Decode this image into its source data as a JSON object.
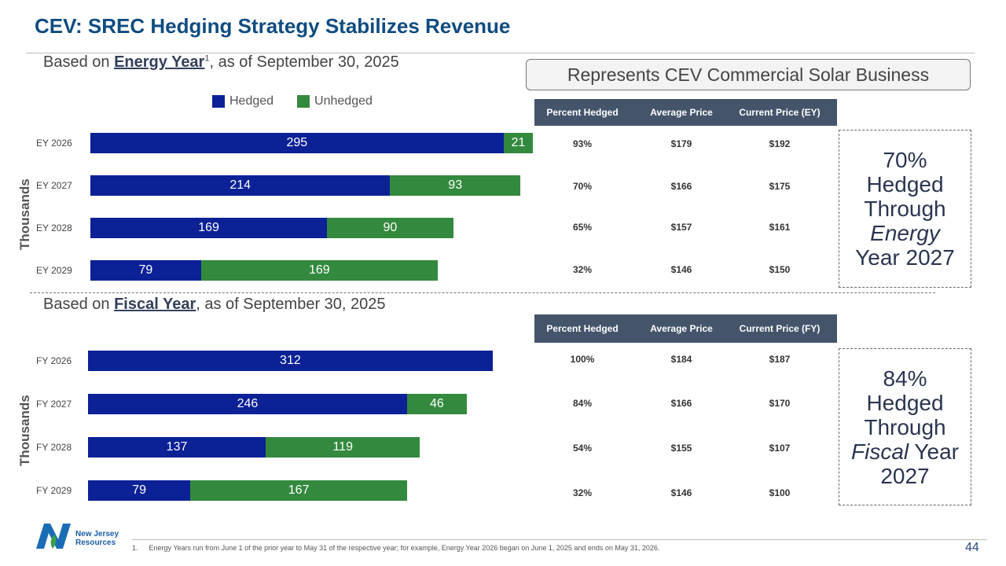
{
  "title": "CEV: SREC Hedging Strategy Stabilizes Revenue",
  "callout": "Represents CEV Commercial Solar Business",
  "colors": {
    "hedged": "#0c2196",
    "unhedged": "#338a3e",
    "header": "#44546a",
    "title": "#0f4c81"
  },
  "energy": {
    "subtitle_pre": "Based on ",
    "subtitle_bold": "Energy Year",
    "subtitle_sup": "1",
    "subtitle_post": ", as of September 30, 2025",
    "table": {
      "headers": [
        "Percent Hedged",
        "Average Price",
        "Current Price (EY)"
      ],
      "rows": [
        [
          "93%",
          "$179",
          "$192"
        ],
        [
          "70%",
          "$166",
          "$175"
        ],
        [
          "65%",
          "$157",
          "$161"
        ],
        [
          "32%",
          "$146",
          "$150"
        ]
      ]
    },
    "box": {
      "line1": "70%",
      "line2": "Hedged",
      "line3": "Through",
      "line4": "Energy",
      "line5": "Year 2027"
    }
  },
  "fiscal": {
    "subtitle_pre": "Based on ",
    "subtitle_bold": "Fiscal Year",
    "subtitle_post": ", as of September 30, 2025",
    "table": {
      "headers": [
        "Percent Hedged",
        "Average Price",
        "Current Price (FY)"
      ],
      "rows": [
        [
          "100%",
          "$184",
          "$187"
        ],
        [
          "84%",
          "$166",
          "$170"
        ],
        [
          "54%",
          "$155",
          "$107"
        ],
        [
          "32%",
          "$146",
          "$100"
        ]
      ]
    },
    "box": {
      "line1": "84%",
      "line2": "Hedged",
      "line3": "Through",
      "line4": "Fiscal",
      "line5": "Year",
      "line6": "2027"
    }
  },
  "chart_data": [
    {
      "type": "bar",
      "orientation": "horizontal",
      "stacked": true,
      "ylabel": "Thousands",
      "legend": "top",
      "categories": [
        "EY 2026",
        "EY 2027",
        "EY 2028",
        "EY 2029"
      ],
      "series": [
        {
          "name": "Hedged",
          "values": [
            295,
            214,
            169,
            79
          ]
        },
        {
          "name": "Unhedged",
          "values": [
            21,
            93,
            90,
            169
          ]
        }
      ]
    },
    {
      "type": "bar",
      "orientation": "horizontal",
      "stacked": true,
      "ylabel": "Thousands",
      "categories": [
        "FY 2026",
        "FY 2027",
        "FY 2028",
        "FY 2029"
      ],
      "series": [
        {
          "name": "Hedged",
          "values": [
            312,
            246,
            137,
            79
          ]
        },
        {
          "name": "Unhedged",
          "values": [
            0,
            46,
            119,
            167
          ]
        }
      ]
    }
  ],
  "footer": {
    "company_line1": "New Jersey",
    "company_line2": "Resources",
    "footnote_num": "1.",
    "footnote": "Energy Years run from June 1 of the prior year to May 31 of the respective year; for example, Energy Year 2026 began on June 1, 2025 and ends on May 31, 2026.",
    "page": "44"
  }
}
